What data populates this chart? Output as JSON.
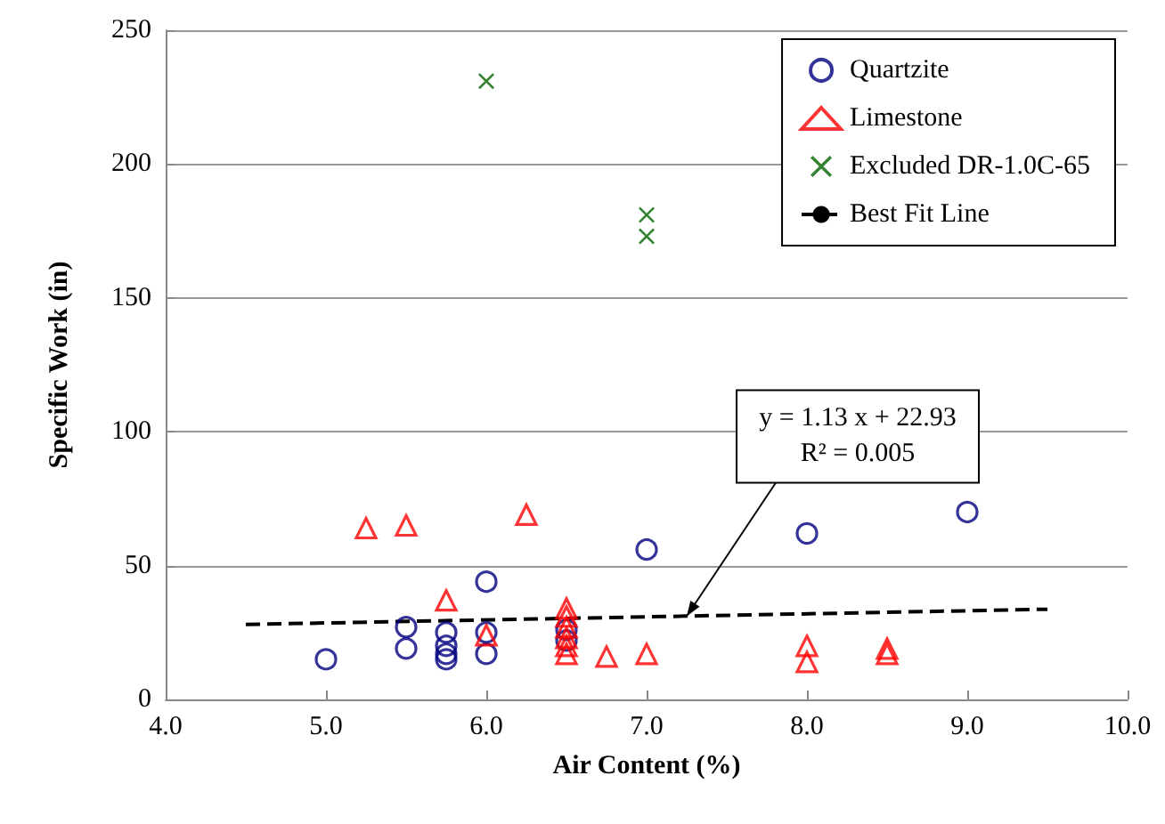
{
  "chart_data": {
    "type": "scatter",
    "xlabel": "Air Content (%)",
    "ylabel": "Specific Work (in)",
    "xlim": [
      4.0,
      10.0
    ],
    "xticks": [
      {
        "value": 4,
        "label": "4.0"
      },
      {
        "value": 5,
        "label": "5.0"
      },
      {
        "value": 6,
        "label": "6.0"
      },
      {
        "value": 7,
        "label": "7.0"
      },
      {
        "value": 8,
        "label": "8.0"
      },
      {
        "value": 9,
        "label": "9.0"
      },
      {
        "value": 10,
        "label": "10.0"
      }
    ],
    "ylim": [
      0,
      250
    ],
    "yticks": [
      0,
      50,
      100,
      150,
      200,
      250
    ],
    "grid": "y",
    "legend": "top right",
    "annotations": [
      {
        "text": "y = 1.13 x + 22.93\nR² = 0.005",
        "x": 7.25,
        "y": 31.1
      }
    ],
    "series": [
      {
        "name": "Quartzite",
        "color": "#000080",
        "marker": "circle",
        "x": [
          5.0,
          5.5,
          5.5,
          5.75,
          5.75,
          5.75,
          5.75,
          6.0,
          6.0,
          6.0,
          6.5,
          6.5,
          7.0,
          8.0,
          9.0
        ],
        "values": [
          15,
          27,
          19,
          25,
          20,
          17,
          15,
          44,
          25,
          17,
          26,
          22,
          56,
          62,
          70
        ]
      },
      {
        "name": "Limestone",
        "color": "#ff0000",
        "marker": "triangle",
        "x": [
          5.25,
          5.5,
          5.75,
          6.0,
          6.25,
          6.5,
          6.5,
          6.5,
          6.5,
          6.5,
          6.5,
          6.75,
          7.0,
          8.0,
          8.0,
          8.5,
          8.5
        ],
        "values": [
          64,
          65,
          37,
          24,
          69,
          34,
          31,
          27,
          23,
          20,
          17,
          16,
          17,
          20,
          14,
          19,
          17
        ]
      },
      {
        "name": "Excluded DR-1.0C-65",
        "color": "#006400",
        "marker": "cross",
        "x": [
          6.0,
          7.0,
          7.0
        ],
        "values": [
          231,
          181,
          173
        ]
      },
      {
        "name": "Best Fit Line",
        "type": "line",
        "color": "#000000",
        "marker": "none",
        "line_style": "dashed",
        "x": [
          4.5,
          9.5
        ],
        "values": [
          28.0,
          33.7
        ]
      }
    ]
  }
}
